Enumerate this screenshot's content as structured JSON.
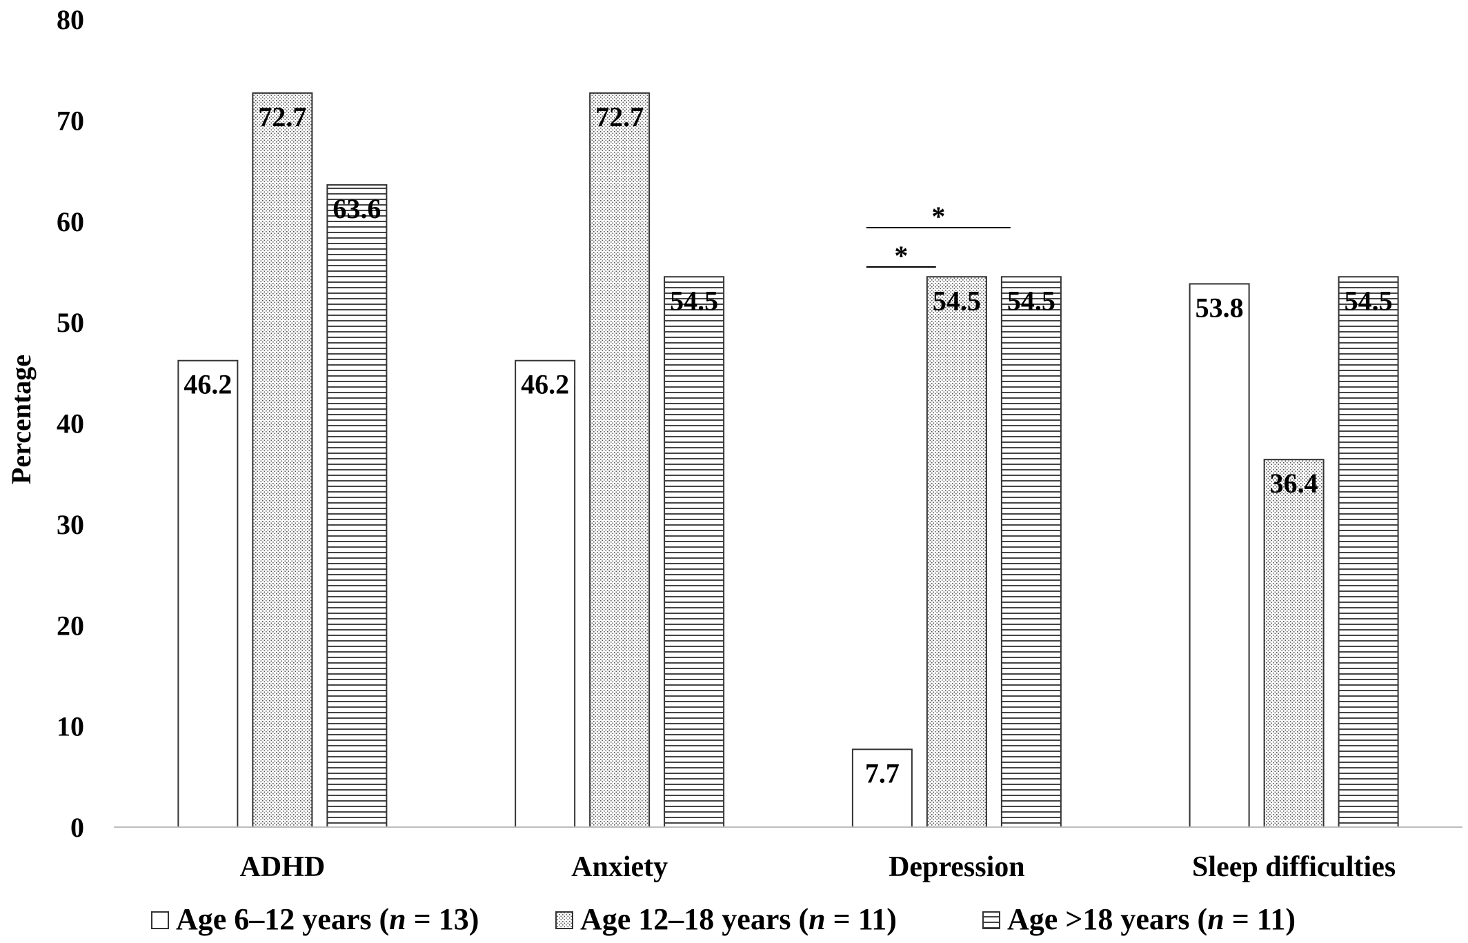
{
  "chart_data": {
    "type": "bar",
    "ylabel": "Percentage",
    "xlabel": "",
    "ylim": [
      0,
      80
    ],
    "yticks": [
      0,
      10,
      20,
      30,
      40,
      50,
      60,
      70,
      80
    ],
    "grid": false,
    "legend_position": "bottom",
    "categories": [
      "ADHD",
      "Anxiety",
      "Depression",
      "Sleep difficulties"
    ],
    "series": [
      {
        "name_prefix": "Age 6–12 years (",
        "name_n": "n",
        "name_suffix": " = 13)",
        "pattern": "plain",
        "values": [
          46.2,
          46.2,
          7.7,
          53.8
        ],
        "labels": [
          "46.2",
          "46.2",
          "7.7",
          "53.8"
        ]
      },
      {
        "name_prefix": "Age 12–18 years (",
        "name_n": "n",
        "name_suffix": " = 11)",
        "pattern": "dotted",
        "values": [
          72.7,
          72.7,
          54.5,
          36.4
        ],
        "labels": [
          "72.7",
          "72.7",
          "54.5",
          "36.4"
        ]
      },
      {
        "name_prefix": "Age >18 years (",
        "name_n": "n",
        "name_suffix": " = 11)",
        "pattern": "horizontal-lines",
        "values": [
          63.6,
          54.5,
          54.5,
          54.5
        ],
        "labels": [
          "63.6",
          "54.5",
          "54.5",
          "54.5"
        ]
      }
    ],
    "annotations": [
      {
        "category": "Depression",
        "from_series": 0,
        "to_series": 1,
        "text": "*"
      },
      {
        "category": "Depression",
        "from_series": 0,
        "to_series": 2,
        "text": "*"
      }
    ]
  }
}
